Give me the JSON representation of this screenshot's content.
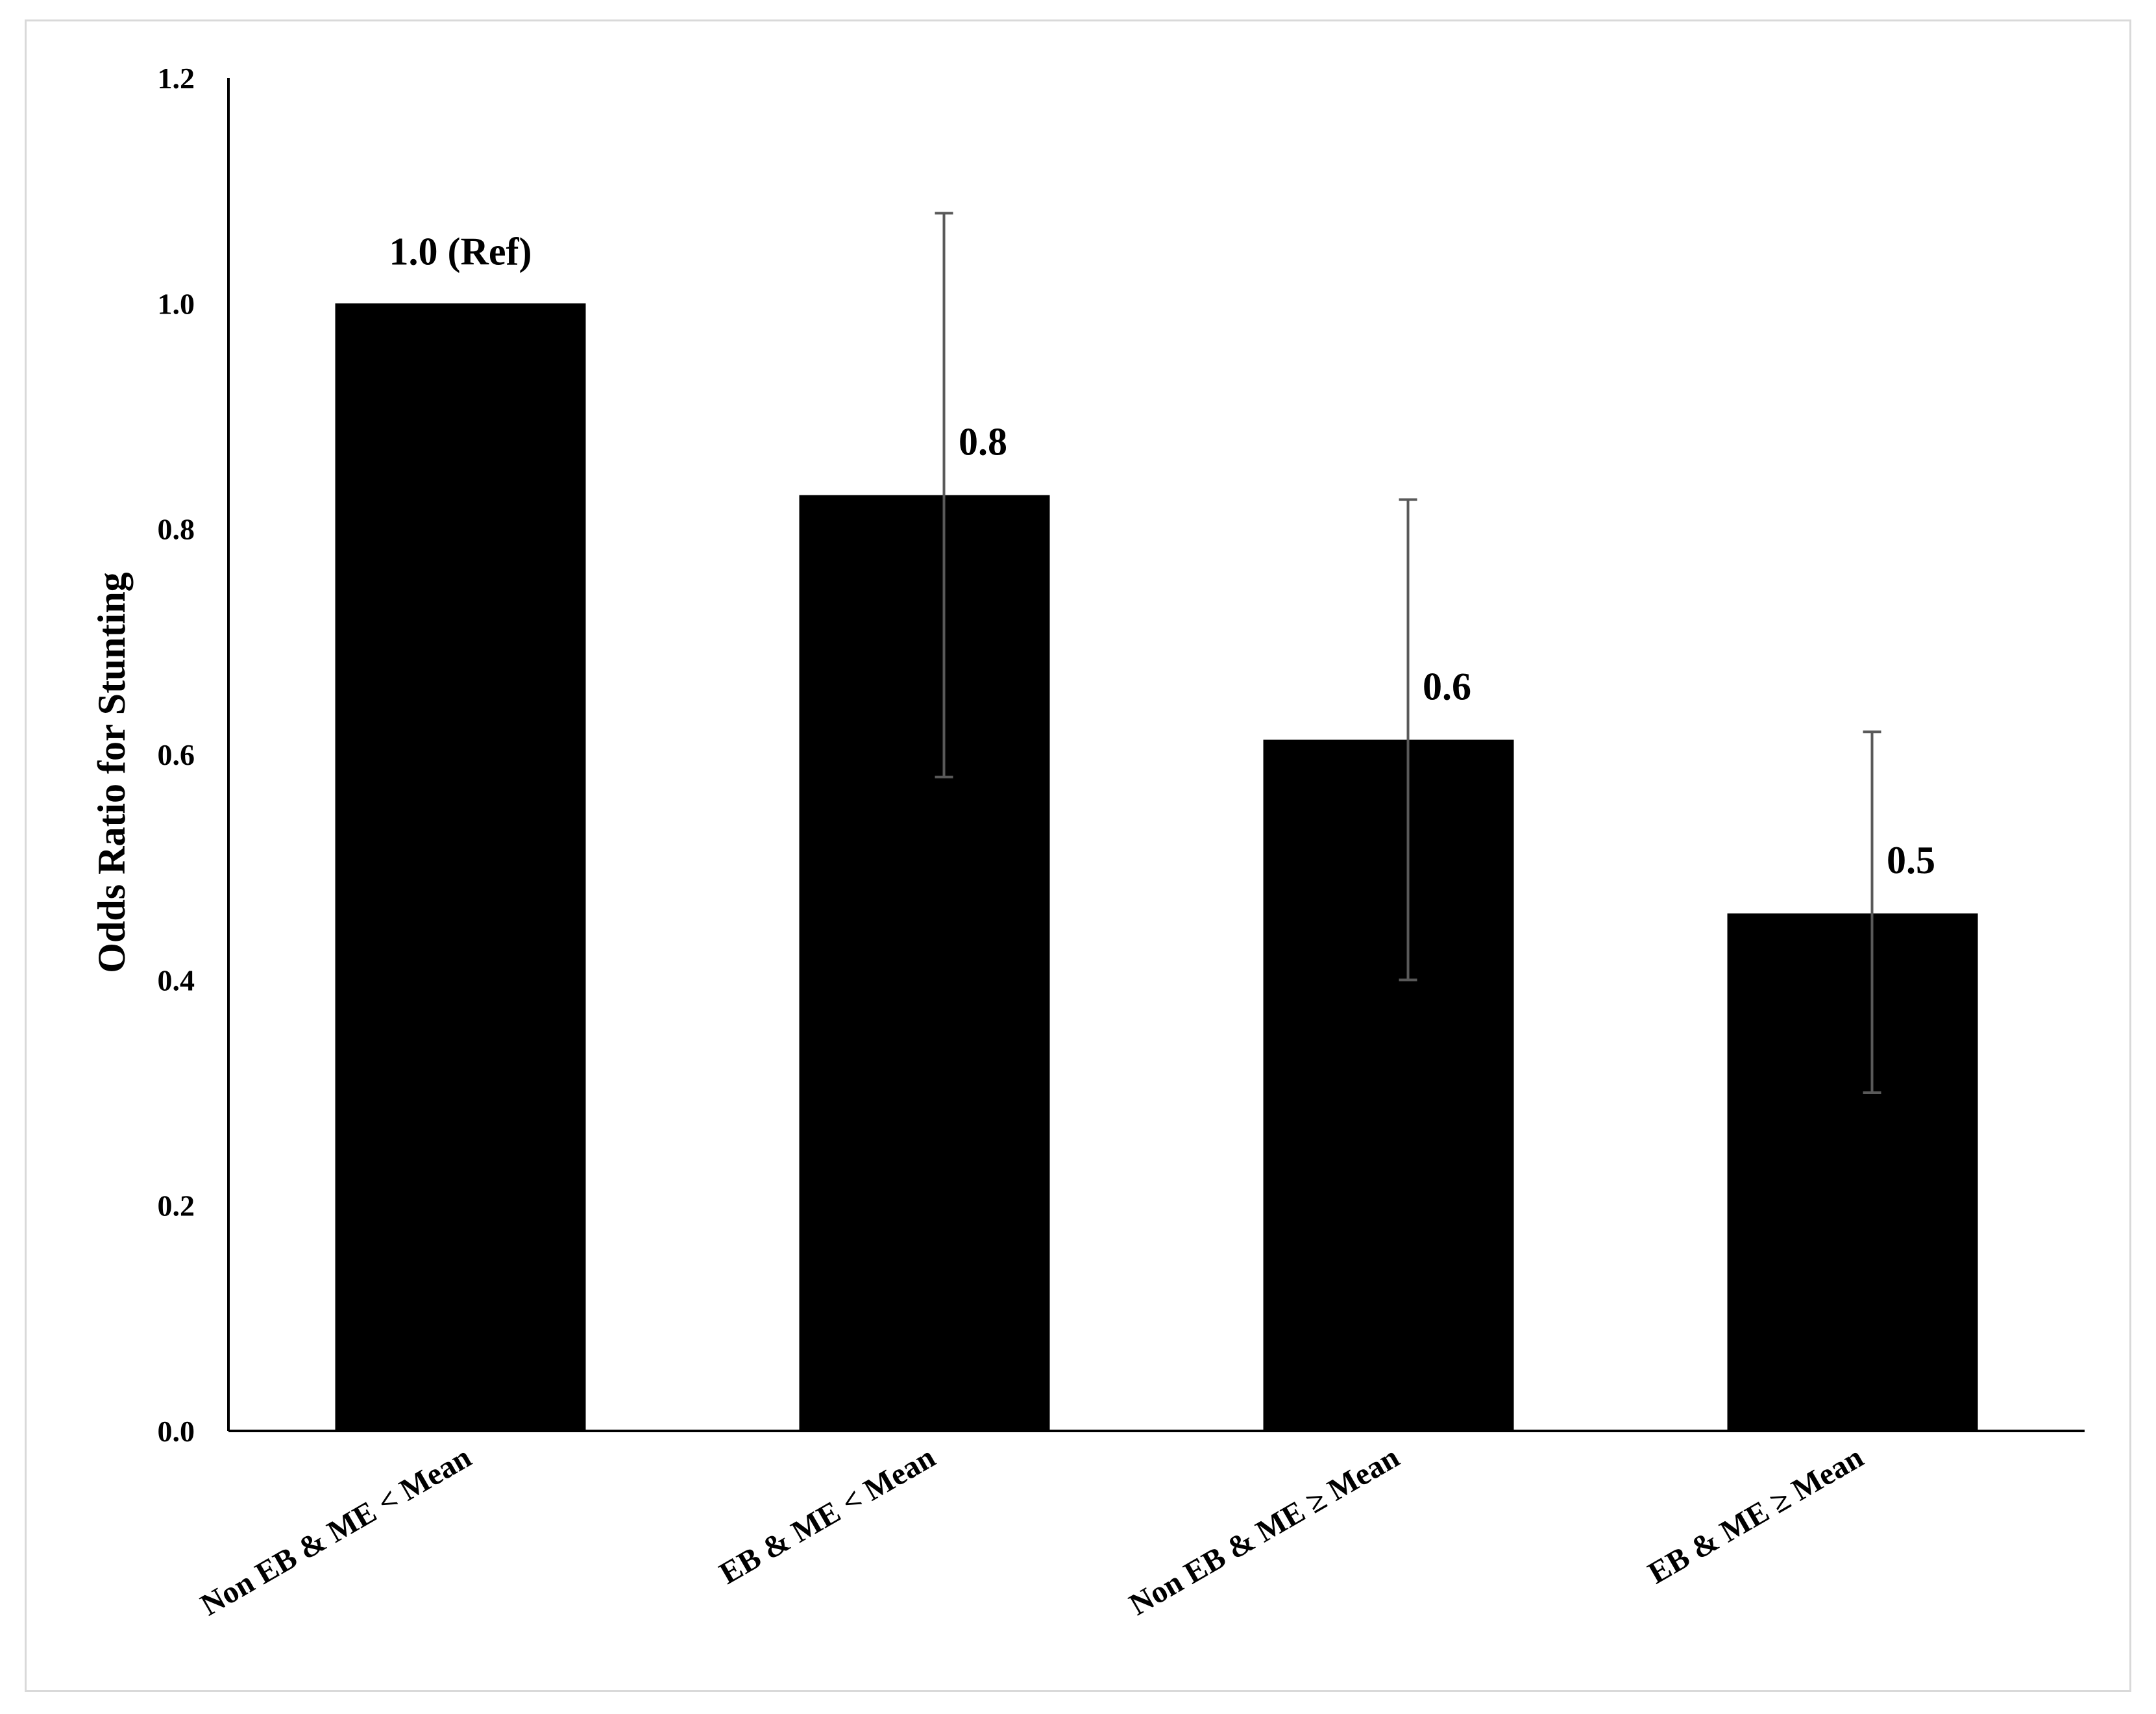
{
  "chart_data": {
    "type": "bar",
    "title": "",
    "xlabel": "",
    "ylabel": "Odds Ratio for Stunting",
    "ylim": [
      0,
      1.2
    ],
    "yticks": [
      "0.0",
      "0.2",
      "0.4",
      "0.6",
      "0.8",
      "1.0",
      "1.2"
    ],
    "grid": false,
    "categories": [
      "Non EB & ME < Mean",
      "EB & ME < Mean",
      "Non EB & ME ≥ Mean",
      "EB & ME ≥ Mean"
    ],
    "values": [
      1.0,
      0.83,
      0.613,
      0.459
    ],
    "error_low": [
      null,
      0.58,
      0.4,
      0.3
    ],
    "error_high": [
      null,
      1.08,
      0.826,
      0.62
    ],
    "data_labels": [
      "1.0 (Ref)",
      "0.8",
      "0.6",
      "0.5"
    ],
    "colors": {
      "bar": "#000000",
      "error_bar": "#595959",
      "axis": "#000000",
      "frame": "#d9d9d9"
    }
  }
}
